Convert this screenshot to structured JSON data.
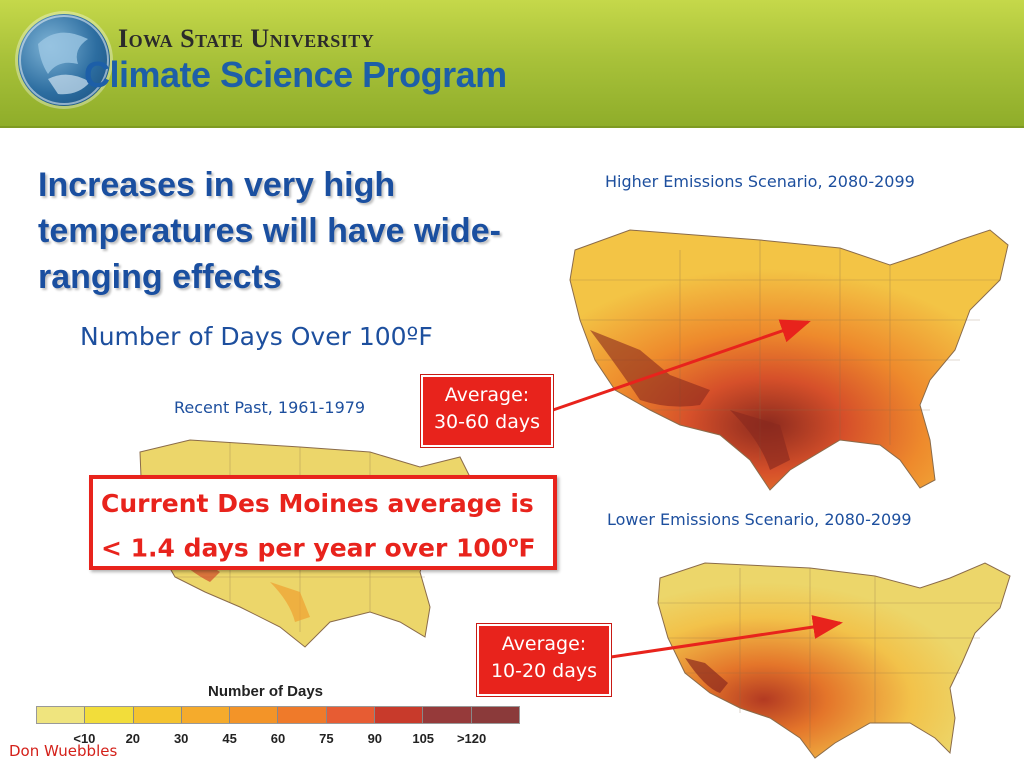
{
  "header": {
    "university": "Iowa State University",
    "program": "Climate Science Program"
  },
  "slide": {
    "title": "Increases in very high temperatures will have wide-ranging effects",
    "subtitle": "Number of Days Over 100ºF"
  },
  "maps": {
    "higher": {
      "caption": "Higher Emissions Scenario, 2080-2099"
    },
    "recent": {
      "caption": "Recent Past, 1961-1979"
    },
    "lower": {
      "caption": "Lower Emissions Scenario, 2080-2099"
    }
  },
  "averages": {
    "higher": {
      "line1": "Average:",
      "line2": "30-60 days"
    },
    "lower": {
      "line1": "Average:",
      "line2": "10-20 days"
    }
  },
  "callout": {
    "line1": "Current Des Moines average is",
    "line2_prefix": "< 1.4 days per year over 100",
    "line2_degree": "o",
    "line2_suffix": "F"
  },
  "legend": {
    "title": "Number of Days",
    "ticks": [
      "<10",
      "20",
      "30",
      "45",
      "60",
      "75",
      "90",
      "105",
      ">120"
    ],
    "colors": [
      "#efe47e",
      "#f2dd3a",
      "#f4c32f",
      "#f5ab2c",
      "#f39428",
      "#ef7a2a",
      "#e75c33",
      "#c83a2b",
      "#963a3a",
      "#8b3a3a"
    ]
  },
  "credit": "Don Wuebbles",
  "colors": {
    "accent_red": "#e8231c",
    "title_blue": "#1a4fa0",
    "banner_green": "#a9c23a"
  }
}
